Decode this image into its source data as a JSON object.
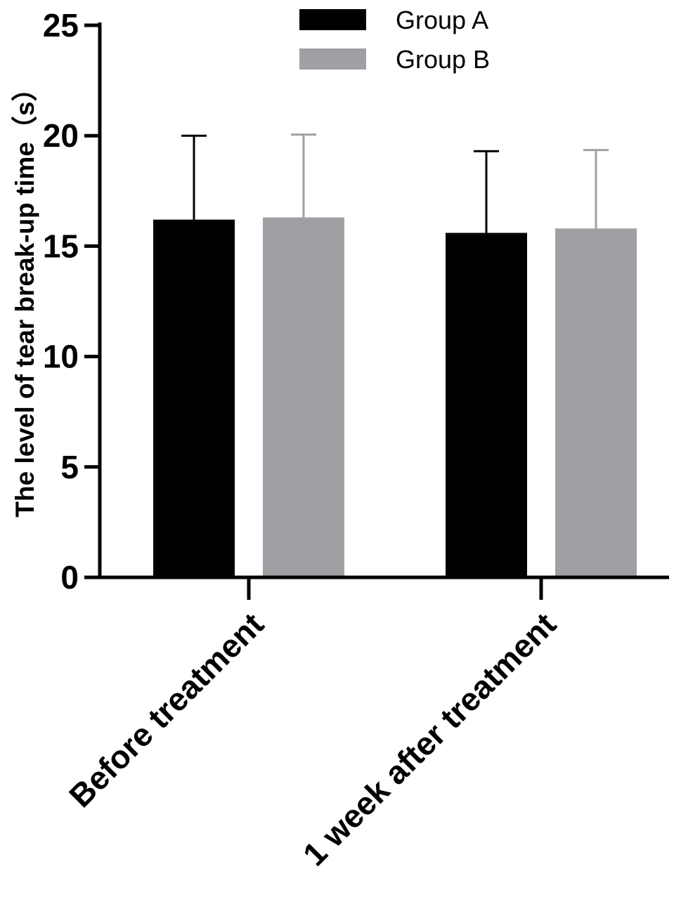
{
  "chart_data": {
    "type": "bar",
    "categories": [
      "Before treatment",
      "1 week after treatment"
    ],
    "series": [
      {
        "name": "Group A",
        "color": "#000000",
        "values": [
          16.2,
          15.6
        ],
        "error": [
          3.8,
          3.7
        ]
      },
      {
        "name": "Group B",
        "color": "#a0a0a4",
        "values": [
          16.3,
          15.8
        ],
        "error": [
          3.75,
          3.55
        ]
      }
    ],
    "title": "",
    "xlabel": "",
    "ylabel": "The level of tear break-up time（s）",
    "ylim": [
      0,
      25
    ],
    "yticks": [
      0,
      5,
      10,
      15,
      20,
      25
    ],
    "grid": false,
    "legend": "top-center"
  }
}
